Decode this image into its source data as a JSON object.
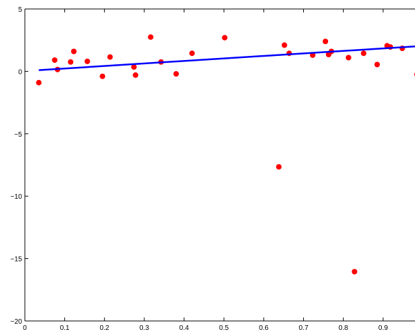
{
  "chart_data": {
    "type": "scatter",
    "title": "",
    "xlabel": "",
    "ylabel": "",
    "xlim": [
      0,
      0.98
    ],
    "ylim": [
      -20,
      5
    ],
    "grid": false,
    "x_ticks": [
      0,
      0.1,
      0.2,
      0.3,
      0.4,
      0.5,
      0.6,
      0.7,
      0.8,
      0.9
    ],
    "x_tick_labels": [
      "0",
      "0.1",
      "0.2",
      "0.3",
      "0.4",
      "0.5",
      "0.6",
      "0.7",
      "0.8",
      "0.9"
    ],
    "y_ticks": [
      -20,
      -15,
      -10,
      -5,
      0,
      5
    ],
    "y_tick_labels": [
      "−20",
      "−15",
      "−10",
      "−5",
      "0",
      "5"
    ],
    "series": [
      {
        "kind": "scatter",
        "color": "#ff0000",
        "points": [
          [
            0.035,
            -0.9
          ],
          [
            0.075,
            0.9
          ],
          [
            0.082,
            0.15
          ],
          [
            0.115,
            0.75
          ],
          [
            0.123,
            1.6
          ],
          [
            0.157,
            0.8
          ],
          [
            0.195,
            -0.4
          ],
          [
            0.214,
            1.15
          ],
          [
            0.274,
            0.35
          ],
          [
            0.278,
            -0.3
          ],
          [
            0.316,
            2.75
          ],
          [
            0.342,
            0.75
          ],
          [
            0.38,
            -0.2
          ],
          [
            0.42,
            1.45
          ],
          [
            0.502,
            2.7
          ],
          [
            0.638,
            -7.65
          ],
          [
            0.652,
            2.1
          ],
          [
            0.664,
            1.45
          ],
          [
            0.723,
            1.3
          ],
          [
            0.755,
            2.4
          ],
          [
            0.763,
            1.35
          ],
          [
            0.77,
            1.6
          ],
          [
            0.813,
            1.1
          ],
          [
            0.828,
            -16.05
          ],
          [
            0.851,
            1.45
          ],
          [
            0.885,
            0.55
          ],
          [
            0.91,
            2.05
          ],
          [
            0.918,
            1.95
          ],
          [
            0.948,
            1.85
          ],
          [
            0.985,
            -0.25
          ]
        ]
      },
      {
        "kind": "line",
        "color": "#0000ff",
        "points": [
          [
            0.035,
            0.1
          ],
          [
            0.98,
            2.0
          ]
        ]
      }
    ]
  }
}
